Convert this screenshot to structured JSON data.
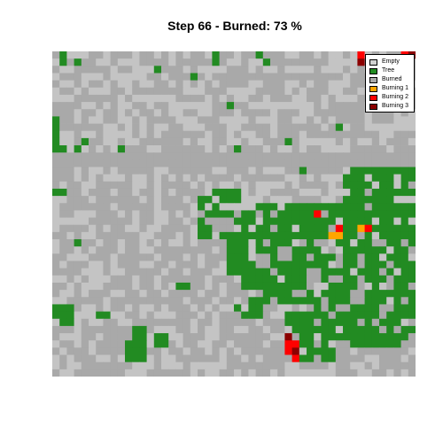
{
  "title": "Step 66 - Burned: 73 %",
  "grid": {
    "cols": 50,
    "rows": 45,
    "cell_codes": {
      "E": "empty",
      "T": "tree",
      "B": "burned",
      "1": "burning1",
      "2": "burning2",
      "3": "burning3"
    },
    "cells": [
      "BBEBBBBBBBBBBBBBBBBBBBBBBBBBBBBBBBBBBBBBBBBBBBBB23",
      "BBBTBBBBBBEBBBBBBBBBBBTBBBBBBTBBBBBBBBBBBBBBBBBBBB",
      "BEBBBBBBBBBBBBBBBBBBBBBBBBBBBBBBBBBBBBBBBBBBBBBBBB",
      "BBBBBBBBBBBBBBBBBBBTBBBBBBBBBBBBBBBBBBBBBBBBBBBBBB",
      "BBBBEBBBBBBBBBBBBBBBBBBBBBBBBBBBBBBBBBBBBBBBBBBBBB",
      "BBBBBBBBBBBBBBBBBBBBBBBBBBBBBBBBBBBBBBBBBBBBBBBBBB",
      "BBBBBBBBBBBBBBBBBBBBBBBBBBBBBBBBBBBBBBBBBBBBBBBBBB",
      "BBBBBBBBBBBBBBBBBBBBBBBBTBBBBBBBBBBBBBBBBBBBBBBBBB",
      "BBBBBBBBBBBBBBBBBBBBBBBBBBBBBBBBBBBBBBBBBBBBBBBBBB",
      "TBBBBBBBBBBBBBBBBBBBBBBBBBBBBBBBBBBBBBBBBBBBBBBBBB",
      "TBBBBBBBBBBBBBBBBBBBBBBBBBBBBBBBBBBBBBBBBBBBBBBBBB",
      "TBBBBBBBBBBBBBBBBBBBBBBBBBBBBBBBBBBBBBBBBBBBBBBBBB",
      "TBBBBBBBBBBBBBBBBBBBBBBBBBBBBBBBBBBBBBBBBBBBBBBBBB",
      "TTBBBBBBBBBBBBBBBBBBBBBBBBBBBBBBBBBBBBBBBBBBBBBBBB",
      "BBBBBBBBBBBBBBBBBBBBBBBBBBBBBBBBBBBBBBBBBBBBBBBBBB",
      "BBBBBBBBBBBBBBBBBBBBBBBBBBBBBBBBBBBBBBBBBBBBBBBBBB",
      "BBBBBBBBBBBBBBBBBBBBBBBBBBBBBBBBBBBBBBBBBBBBBBBBBB",
      "BBBBBBBBBBBBBBBBBBBBBBBBBBBBBBBBBBBBBBBBBBBBBBBBBB",
      "BBBBBBBBBBBBBBBBBBBBBBBBBBBBBBBBBBBBBBBBBBBBBBBBBB",
      "BBBBBBBBBBBBBBBBBBBBBBBBBBBBBBBBBBBBBBBBBBBBBBBBBB",
      "BBBBBBBBBBBBBBBBBBBBBBBBBBBBBBBBBBBBBBBBBBBBBBBBBB",
      "BBBBBBBBBBBBBBBBBBBBBBBBBBBBBBBBBBBBBBBBBBBBBBBBBB",
      "BBBBBBBBBBBBBBBBBBBBBBBBBBBBBBBBBBBBBBBBBBBBBBBBBB",
      "BBBBBBBBBBBBBBBBBBBBBBBBBBBBBBBBBBBBBBBBBBBBBBBBBB",
      "BBBBBBBBBBBBBBBBBBBBBBBBBBBBBBBBBBBBBBBBBBBBBBBBBB",
      "BBBBBBBBBBBBBBBBBBBBBBBBBBBBBBBBBBBBBBBBBBBBBBBBBB",
      "BBBBBBBBBBBBBBBBBBBBBBBBBBBBBBBBBBBBBBBBBBBBBBBBBB",
      "BBBBBBBBBBBBBBBBBBBBBBBBBBBBBBBBBBBBBBBBBBBBBBBBBB",
      "BBBBBBBBBBBBBBBBBBBBBBBBBBBBBBBBBBBBBBBBBBBBBBBBBB",
      "BBBBBBBBBBBBBBBBBBBBBBBBBBBBBBBBBBBBBBBBBBBBBBBBBB",
      "BBBBBBBBBBBBBBBBBBBBBBBBBBBBBBBBBBBBBBBBBBBBBBBBBB",
      "BBBBBBBBBBBBBBBBBBBBBBBBBBBBBBBBBBBBBBBBBBBBBBBBBB",
      "BBBBBBBBBBBBBBBBBBBBBBBBBBBBBBBBBBBBBBBBBBBBBBBBBB",
      "BBBBBBBBBBBBBBBBBBBBBBBBBBBBBBBBBBBBBBBBBBBBBBBBBB",
      "BBBBBBBBBBBBBBBBBBBBBBBBBBBBBBBBBBBBBBBBBBBBBBBBBB",
      "BBBBBBBBBBBBBBBBBBBBBBBBBBBBBBBBBBBBBBBBBBBBBBBBBB",
      "BBBBBBBBBBBBBBBBBBBBBBBBBBBBBBBBBBBBBBBBBBBBBBBBBB",
      "BBBBBBBBBBBBBBBBBBBBBBBBBBBBBBBBBBBBBBBBBBBBBBBBBB",
      "BBBBBBBBBBBBBBBBBBBBBBBBBBBBBBBBBBBBBBBBBBBBBBBBBB",
      "BBBBBBBBBBBBBBBBBBBBBBBBBBBBBBBBBBBBBBBBBBBBBBBBBB",
      "BBBBBBBBBBBBBBBBBBBBBBBBBBBBBBBBBBBBBBBBBBBBBBBBBB",
      "BBBBBBBBBBBBBBBBBBBBBBBBBBBBBBBBBBBBBBBBBBBBBBBBBB",
      "BBBBBBBBBBBBBBBBBBBBBBBBBBBBBBBBBBBBBBBBBBBBBBBBBB",
      "BBBBBBBBBBBBBBBBBBBBBBBBBBBBBBBBBBBBBBBBBBBBBBBBBB",
      "BBBBBBBBBBBBBBBBBBBBBBBBBBBBBBBBBBBBBBBBBBBBBBBBBB"
    ],
    "overlays": [
      {
        "state": "tree",
        "rects": [
          [
            40,
            16,
            10,
            12
          ],
          [
            42,
            16,
            8,
            2
          ],
          [
            46,
            14,
            4,
            4
          ],
          [
            48,
            15,
            2,
            2
          ],
          [
            20,
            20,
            6,
            6
          ],
          [
            22,
            19,
            4,
            2
          ],
          [
            26,
            21,
            14,
            12
          ],
          [
            24,
            23,
            6,
            8
          ],
          [
            27,
            25,
            18,
            10
          ],
          [
            34,
            26,
            16,
            7
          ],
          [
            36,
            30,
            14,
            10
          ],
          [
            40,
            33,
            10,
            8
          ],
          [
            44,
            38,
            6,
            3
          ],
          [
            32,
            36,
            6,
            4
          ],
          [
            33,
            38,
            3,
            5
          ],
          [
            35,
            40,
            4,
            3
          ],
          [
            0,
            35,
            3,
            2
          ],
          [
            1,
            37,
            2,
            1
          ],
          [
            6,
            36,
            2,
            1
          ],
          [
            10,
            40,
            3,
            3
          ],
          [
            11,
            38,
            2,
            2
          ],
          [
            14,
            39,
            2,
            2
          ],
          [
            17,
            32,
            2,
            1
          ],
          [
            44,
            29,
            4,
            5
          ],
          [
            25,
            35,
            4,
            2
          ]
        ]
      },
      {
        "state": "burned",
        "rects": [
          [
            28,
            28,
            2,
            2
          ],
          [
            31,
            27,
            2,
            2
          ],
          [
            35,
            30,
            2,
            2
          ],
          [
            38,
            31,
            2,
            1
          ],
          [
            41,
            33,
            2,
            2
          ],
          [
            45,
            35,
            1,
            2
          ],
          [
            42,
            28,
            1,
            2
          ],
          [
            30,
            24,
            1,
            1
          ],
          [
            37,
            26,
            1,
            1
          ],
          [
            39,
            29,
            1,
            1
          ],
          [
            33,
            33,
            2,
            1
          ],
          [
            46,
            31,
            1,
            1
          ],
          [
            23,
            23,
            1,
            2
          ]
        ]
      },
      {
        "state": "tree",
        "rects": [
          [
            1,
            0,
            1,
            2
          ],
          [
            22,
            0,
            1,
            1
          ],
          [
            28,
            0,
            1,
            1
          ],
          [
            14,
            2,
            1,
            1
          ],
          [
            24,
            7,
            1,
            1
          ],
          [
            32,
            12,
            1,
            1
          ],
          [
            25,
            13,
            1,
            1
          ],
          [
            4,
            12,
            1,
            1
          ],
          [
            3,
            13,
            1,
            1
          ],
          [
            0,
            19,
            2,
            1
          ],
          [
            9,
            13,
            1,
            1
          ],
          [
            47,
            17,
            1,
            1
          ],
          [
            34,
            16,
            1,
            1
          ],
          [
            20,
            22,
            1,
            1
          ],
          [
            3,
            26,
            1,
            1
          ],
          [
            39,
            10,
            1,
            1
          ]
        ]
      },
      {
        "state": "burned",
        "rects": [
          [
            0,
            14,
            50,
            2
          ]
        ]
      },
      {
        "state": "burning1",
        "rects": [
          [
            38,
            25,
            1,
            1
          ],
          [
            39,
            24,
            1,
            2
          ],
          [
            42,
            24,
            1,
            1
          ],
          [
            43,
            24,
            1,
            1
          ]
        ]
      },
      {
        "state": "burning2",
        "rects": [
          [
            36,
            22,
            1,
            1
          ],
          [
            39,
            24,
            1,
            1
          ],
          [
            43,
            24,
            1,
            1
          ],
          [
            32,
            40,
            2,
            2
          ],
          [
            33,
            42,
            1,
            1
          ],
          [
            42,
            0,
            1,
            1
          ]
        ]
      },
      {
        "state": "burning3",
        "rects": [
          [
            32,
            39,
            1,
            1
          ],
          [
            42,
            1,
            1,
            1
          ],
          [
            33,
            41,
            1,
            1
          ]
        ]
      }
    ]
  },
  "legend": {
    "items": [
      {
        "label": "Empty",
        "color": "#d3d3d3"
      },
      {
        "label": "Tree",
        "color": "#228b22"
      },
      {
        "label": "Burned",
        "color": "#a9a9a9"
      },
      {
        "label": "Burning 1",
        "color": "#ffa500"
      },
      {
        "label": "Burning 2",
        "color": "#ff0000"
      },
      {
        "label": "Burning 3",
        "color": "#8b0000"
      }
    ]
  },
  "colors": {
    "empty": "#c4c4c4",
    "tree": "#228b22",
    "burned": "#a9a9a9",
    "burning1": "#ffa500",
    "burning2": "#ff0000",
    "burning3": "#8b0000"
  }
}
